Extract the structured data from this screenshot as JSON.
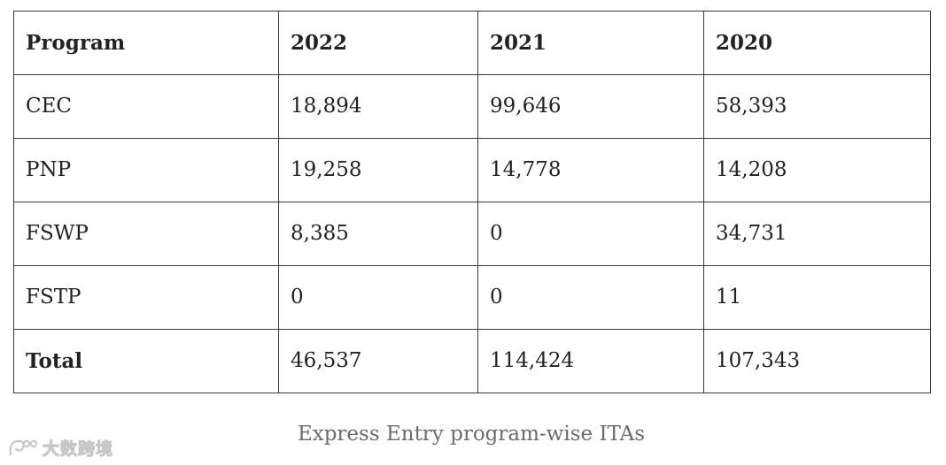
{
  "table": {
    "headers": [
      "Program",
      "2022",
      "2021",
      "2020"
    ],
    "rows": [
      [
        "CEC",
        "18,894",
        "99,646",
        "58,393"
      ],
      [
        "PNP",
        "19,258",
        "14,778",
        "14,208"
      ],
      [
        "FSWP",
        "8,385",
        "0",
        "34,731"
      ],
      [
        "FSTP",
        "0",
        "0",
        "11"
      ],
      [
        "Total",
        "46,537",
        "114,424",
        "107,343"
      ]
    ]
  },
  "caption": "Express Entry program-wise ITAs",
  "watermark": {
    "text": "大数跨境",
    "icon": "logo-swirl-icon"
  }
}
